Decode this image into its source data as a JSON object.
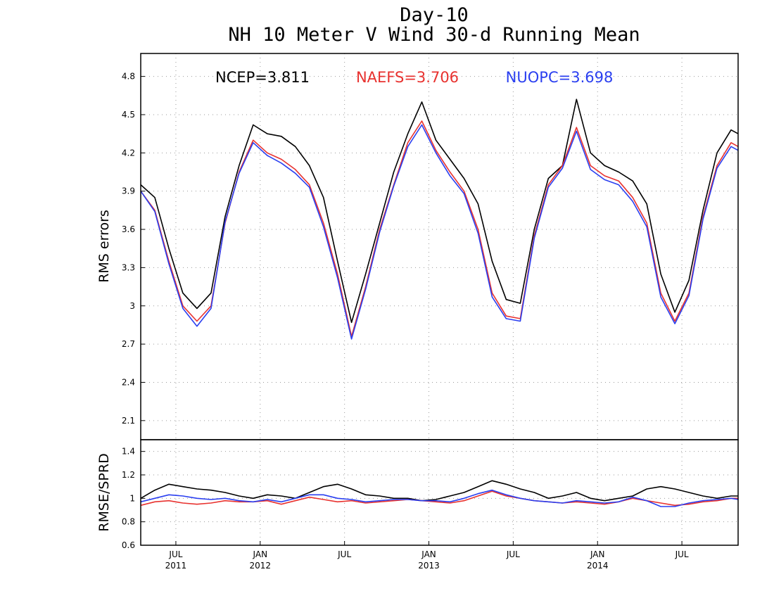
{
  "chart_data": {
    "type": "line",
    "title_line1": "Day-10",
    "title_line2": "NH 10 Meter V Wind 30-d Running Mean",
    "colors": {
      "NCEP": "#000000",
      "NAEFS": "#e8322f",
      "NUOPC": "#2a3ff0"
    },
    "x_ticks": [
      {
        "month": "JUL",
        "year": "2011",
        "t": 1.0
      },
      {
        "month": "JAN",
        "year": "2012",
        "t": 7.0
      },
      {
        "month": "JUL",
        "year": "",
        "t": 13.0
      },
      {
        "month": "JAN",
        "year": "2013",
        "t": 19.0
      },
      {
        "month": "JUL",
        "year": "",
        "t": 25.0
      },
      {
        "month": "JAN",
        "year": "2014",
        "t": 31.0
      },
      {
        "month": "JUL",
        "year": "",
        "t": 37.0
      }
    ],
    "xlim": [
      -1.5,
      41.0
    ],
    "top_panel": {
      "ylabel": "RMS errors",
      "ylim": [
        1.95,
        4.98
      ],
      "yticks": [
        "2.1",
        "2.4",
        "2.7",
        "3",
        "3.3",
        "3.6",
        "3.9",
        "4.2",
        "4.5",
        "4.8"
      ],
      "legend": [
        {
          "key": "NCEP",
          "text": "NCEP=3.811"
        },
        {
          "key": "NAEFS",
          "text": "NAEFS=3.706"
        },
        {
          "key": "NUOPC",
          "text": "NUOPC=3.698"
        }
      ],
      "series": [
        {
          "key": "NCEP",
          "x": [
            -1.5,
            -0.5,
            0.5,
            1.5,
            2.5,
            3.5,
            4.5,
            5.5,
            6.5,
            7.5,
            8.5,
            9.5,
            10.5,
            11.5,
            12.5,
            13.5,
            14.5,
            15.5,
            16.5,
            17.5,
            18.5,
            19.5,
            20.5,
            21.5,
            22.5,
            23.5,
            24.5,
            25.5,
            26.5,
            27.5,
            28.5,
            29.5,
            30.5,
            31.5,
            32.5,
            33.5,
            34.5,
            35.5,
            36.5,
            37.5,
            38.5,
            39.5,
            40.5,
            41.0
          ],
          "y": [
            3.95,
            3.85,
            3.45,
            3.1,
            2.98,
            3.1,
            3.7,
            4.1,
            4.42,
            4.35,
            4.33,
            4.25,
            4.1,
            3.85,
            3.35,
            2.87,
            3.25,
            3.65,
            4.05,
            4.35,
            4.6,
            4.3,
            4.15,
            4.0,
            3.8,
            3.35,
            3.05,
            3.02,
            3.6,
            4.0,
            4.1,
            4.62,
            4.2,
            4.1,
            4.05,
            3.98,
            3.8,
            3.25,
            2.95,
            3.2,
            3.75,
            4.2,
            4.38,
            4.35
          ]
        },
        {
          "key": "NAEFS",
          "x": [
            -1.5,
            -0.5,
            0.5,
            1.5,
            2.5,
            3.5,
            4.5,
            5.5,
            6.5,
            7.5,
            8.5,
            9.5,
            10.5,
            11.5,
            12.5,
            13.5,
            14.5,
            15.5,
            16.5,
            17.5,
            18.5,
            19.5,
            20.5,
            21.5,
            22.5,
            23.5,
            24.5,
            25.5,
            26.5,
            27.5,
            28.5,
            29.5,
            30.5,
            31.5,
            32.5,
            33.5,
            34.5,
            35.5,
            36.5,
            37.5,
            38.5,
            39.5,
            40.5,
            41.0
          ],
          "y": [
            3.9,
            3.75,
            3.35,
            3.0,
            2.88,
            3.0,
            3.65,
            4.05,
            4.3,
            4.2,
            4.15,
            4.07,
            3.95,
            3.65,
            3.25,
            2.76,
            3.15,
            3.6,
            3.95,
            4.28,
            4.45,
            4.22,
            4.05,
            3.9,
            3.6,
            3.1,
            2.92,
            2.9,
            3.55,
            3.95,
            4.1,
            4.4,
            4.1,
            4.02,
            3.98,
            3.85,
            3.65,
            3.1,
            2.88,
            3.1,
            3.7,
            4.1,
            4.28,
            4.25
          ]
        },
        {
          "key": "NUOPC",
          "x": [
            -1.5,
            -0.5,
            0.5,
            1.5,
            2.5,
            3.5,
            4.5,
            5.5,
            6.5,
            7.5,
            8.5,
            9.5,
            10.5,
            11.5,
            12.5,
            13.5,
            14.5,
            15.5,
            16.5,
            17.5,
            18.5,
            19.5,
            20.5,
            21.5,
            22.5,
            23.5,
            24.5,
            25.5,
            26.5,
            27.5,
            28.5,
            29.5,
            30.5,
            31.5,
            32.5,
            33.5,
            34.5,
            35.5,
            36.5,
            37.5,
            38.5,
            39.5,
            40.5,
            41.0
          ],
          "y": [
            3.9,
            3.74,
            3.33,
            2.98,
            2.84,
            2.98,
            3.66,
            4.04,
            4.28,
            4.18,
            4.12,
            4.04,
            3.93,
            3.62,
            3.22,
            2.74,
            3.13,
            3.58,
            3.94,
            4.25,
            4.42,
            4.2,
            4.02,
            3.88,
            3.57,
            3.07,
            2.9,
            2.88,
            3.53,
            3.93,
            4.08,
            4.37,
            4.07,
            3.99,
            3.95,
            3.82,
            3.62,
            3.07,
            2.86,
            3.08,
            3.68,
            4.08,
            4.25,
            4.22
          ]
        }
      ]
    },
    "bottom_panel": {
      "ylabel": "RMSE/SPRD",
      "ylim": [
        0.6,
        1.5
      ],
      "yticks": [
        "0.6",
        "0.8",
        "1",
        "1.2",
        "1.4"
      ],
      "series": [
        {
          "key": "NCEP",
          "x": [
            -1.5,
            -0.5,
            0.5,
            1.5,
            2.5,
            3.5,
            4.5,
            5.5,
            6.5,
            7.5,
            8.5,
            9.5,
            10.5,
            11.5,
            12.5,
            13.5,
            14.5,
            15.5,
            16.5,
            17.5,
            18.5,
            19.5,
            20.5,
            21.5,
            22.5,
            23.5,
            24.5,
            25.5,
            26.5,
            27.5,
            28.5,
            29.5,
            30.5,
            31.5,
            32.5,
            33.5,
            34.5,
            35.5,
            36.5,
            37.5,
            38.5,
            39.5,
            40.5,
            41.0
          ],
          "y": [
            1.0,
            1.07,
            1.12,
            1.1,
            1.08,
            1.07,
            1.05,
            1.02,
            1.0,
            1.03,
            1.02,
            1.0,
            1.05,
            1.1,
            1.12,
            1.08,
            1.03,
            1.02,
            1.0,
            1.0,
            0.98,
            0.99,
            1.02,
            1.05,
            1.1,
            1.15,
            1.12,
            1.08,
            1.05,
            1.0,
            1.02,
            1.05,
            1.0,
            0.98,
            1.0,
            1.02,
            1.08,
            1.1,
            1.08,
            1.05,
            1.02,
            1.0,
            1.02,
            1.02
          ]
        },
        {
          "key": "NAEFS",
          "x": [
            -1.5,
            -0.5,
            0.5,
            1.5,
            2.5,
            3.5,
            4.5,
            5.5,
            6.5,
            7.5,
            8.5,
            9.5,
            10.5,
            11.5,
            12.5,
            13.5,
            14.5,
            15.5,
            16.5,
            17.5,
            18.5,
            19.5,
            20.5,
            21.5,
            22.5,
            23.5,
            24.5,
            25.5,
            26.5,
            27.5,
            28.5,
            29.5,
            30.5,
            31.5,
            32.5,
            33.5,
            34.5,
            35.5,
            36.5,
            37.5,
            38.5,
            39.5,
            40.5,
            41.0
          ],
          "y": [
            0.94,
            0.97,
            0.98,
            0.96,
            0.95,
            0.96,
            0.98,
            0.97,
            0.97,
            0.98,
            0.95,
            0.98,
            1.01,
            0.99,
            0.97,
            0.98,
            0.96,
            0.97,
            0.98,
            0.99,
            0.98,
            0.97,
            0.96,
            0.98,
            1.02,
            1.06,
            1.02,
            1.0,
            0.98,
            0.97,
            0.96,
            0.97,
            0.96,
            0.95,
            0.97,
            1.0,
            0.98,
            0.96,
            0.94,
            0.95,
            0.97,
            0.98,
            1.0,
            1.0
          ]
        },
        {
          "key": "NUOPC",
          "x": [
            -1.5,
            -0.5,
            0.5,
            1.5,
            2.5,
            3.5,
            4.5,
            5.5,
            6.5,
            7.5,
            8.5,
            9.5,
            10.5,
            11.5,
            12.5,
            13.5,
            14.5,
            15.5,
            16.5,
            17.5,
            18.5,
            19.5,
            20.5,
            21.5,
            22.5,
            23.5,
            24.5,
            25.5,
            26.5,
            27.5,
            28.5,
            29.5,
            30.5,
            31.5,
            32.5,
            33.5,
            34.5,
            35.5,
            36.5,
            37.5,
            38.5,
            39.5,
            40.5,
            41.0
          ],
          "y": [
            0.97,
            1.0,
            1.03,
            1.02,
            1.0,
            0.99,
            1.0,
            0.98,
            0.97,
            0.99,
            0.97,
            1.0,
            1.03,
            1.03,
            1.0,
            0.99,
            0.97,
            0.98,
            0.99,
            0.99,
            0.98,
            0.98,
            0.97,
            1.0,
            1.04,
            1.07,
            1.03,
            1.0,
            0.98,
            0.97,
            0.96,
            0.98,
            0.97,
            0.96,
            0.97,
            1.01,
            0.98,
            0.93,
            0.93,
            0.96,
            0.98,
            0.99,
            1.0,
            0.99
          ]
        }
      ]
    }
  }
}
